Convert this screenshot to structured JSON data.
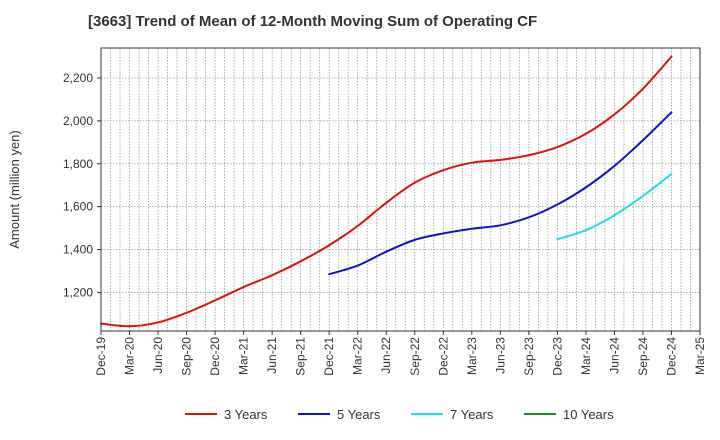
{
  "chart_data": {
    "type": "line",
    "title": "[3663]  Trend of Mean of 12-Month Moving Sum of Operating CF",
    "xlabel": "",
    "ylabel": "Amount (million yen)",
    "ylim": [
      1020,
      2340
    ],
    "y_ticks": [
      1200,
      1400,
      1600,
      1800,
      2000,
      2200
    ],
    "y_tick_labels": [
      "1,200",
      "1,400",
      "1,600",
      "1,800",
      "2,000",
      "2,200"
    ],
    "x_ticks": [
      "Dec-19",
      "Mar-20",
      "Jun-20",
      "Sep-20",
      "Dec-20",
      "Mar-21",
      "Jun-21",
      "Sep-21",
      "Dec-21",
      "Mar-22",
      "Jun-22",
      "Sep-22",
      "Dec-22",
      "Mar-23",
      "Jun-23",
      "Sep-23",
      "Dec-23",
      "Mar-24",
      "Jun-24",
      "Sep-24",
      "Dec-24",
      "Mar-25"
    ],
    "grid": true,
    "legend_position": "bottom",
    "series": [
      {
        "name": "3 Years",
        "color": "#dd1111",
        "points": [
          [
            0,
            1055
          ],
          [
            1,
            1042
          ],
          [
            2,
            1060
          ],
          [
            3,
            1105
          ],
          [
            4,
            1163
          ],
          [
            5,
            1225
          ],
          [
            6,
            1280
          ],
          [
            7,
            1345
          ],
          [
            8,
            1420
          ],
          [
            9,
            1510
          ],
          [
            10,
            1618
          ],
          [
            11,
            1712
          ],
          [
            12,
            1770
          ],
          [
            13,
            1805
          ],
          [
            14,
            1818
          ],
          [
            15,
            1840
          ],
          [
            16,
            1878
          ],
          [
            17,
            1940
          ],
          [
            18,
            2030
          ],
          [
            19,
            2150
          ],
          [
            20,
            2300
          ]
        ]
      },
      {
        "name": "5 Years",
        "color": "#1111cc",
        "points": [
          [
            8,
            1285
          ],
          [
            9,
            1325
          ],
          [
            10,
            1390
          ],
          [
            11,
            1445
          ],
          [
            12,
            1475
          ],
          [
            13,
            1497
          ],
          [
            14,
            1513
          ],
          [
            15,
            1550
          ],
          [
            16,
            1610
          ],
          [
            17,
            1690
          ],
          [
            18,
            1790
          ],
          [
            19,
            1910
          ],
          [
            20,
            2040
          ]
        ]
      },
      {
        "name": "7 Years",
        "color": "#22ddee",
        "points": [
          [
            16,
            1448
          ],
          [
            17,
            1490
          ],
          [
            18,
            1560
          ],
          [
            19,
            1650
          ],
          [
            20,
            1752
          ]
        ]
      },
      {
        "name": "10 Years",
        "color": "#228822",
        "points": []
      }
    ]
  }
}
